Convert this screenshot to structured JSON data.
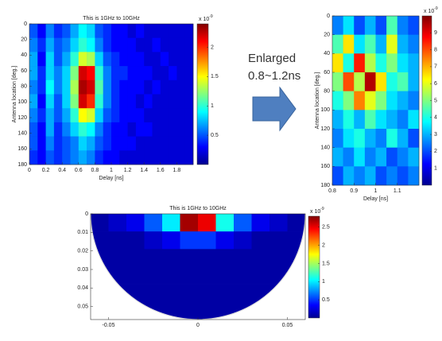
{
  "chart_data": [
    {
      "type": "heatmap",
      "title": "This is 1GHz to 10GHz",
      "xlabel": "Delay [ns]",
      "ylabel": "Antenna location [deg.]",
      "xlim": [
        0,
        2
      ],
      "ylim": [
        0,
        180
      ],
      "xticks": [
        0,
        0.2,
        0.4,
        0.6,
        0.8,
        1,
        1.2,
        1.4,
        1.6,
        1.8
      ],
      "yticks": [
        0,
        20,
        40,
        60,
        80,
        100,
        120,
        140,
        160,
        180
      ],
      "zlim": [
        0,
        2.4
      ],
      "zticks": [
        0.5,
        1,
        1.5,
        2
      ],
      "colorbar_scale": {
        "base": "x 10",
        "exponent": "-9"
      },
      "z": [
        [
          0.5,
          0.3,
          0.6,
          0.4,
          0.5,
          0.7,
          0.9,
          0.8,
          0.5,
          0.4,
          0.3,
          0.3,
          0.2,
          0.3,
          0.2,
          0.2,
          0.2,
          0.2,
          0.2,
          0.2
        ],
        [
          0.6,
          0.4,
          0.7,
          0.5,
          0.6,
          0.8,
          1.0,
          0.9,
          0.6,
          0.4,
          0.3,
          0.3,
          0.3,
          0.2,
          0.2,
          0.3,
          0.2,
          0.2,
          0.2,
          0.2
        ],
        [
          0.7,
          0.3,
          0.8,
          0.5,
          0.7,
          1.0,
          1.4,
          1.3,
          0.8,
          0.5,
          0.4,
          0.3,
          0.3,
          0.3,
          0.2,
          0.2,
          0.3,
          0.2,
          0.2,
          0.2
        ],
        [
          0.7,
          0.4,
          0.8,
          0.6,
          0.8,
          1.2,
          2.2,
          2.1,
          1.0,
          0.6,
          0.4,
          0.4,
          0.3,
          0.3,
          0.3,
          0.2,
          0.2,
          0.3,
          0.2,
          0.2
        ],
        [
          0.6,
          0.4,
          0.9,
          0.6,
          0.8,
          1.3,
          2.3,
          2.2,
          1.1,
          0.6,
          0.4,
          0.3,
          0.3,
          0.3,
          0.2,
          0.3,
          0.2,
          0.2,
          0.2,
          0.2
        ],
        [
          0.7,
          0.3,
          0.8,
          0.5,
          0.8,
          1.2,
          2.2,
          2.0,
          1.0,
          0.6,
          0.4,
          0.3,
          0.3,
          0.2,
          0.3,
          0.2,
          0.2,
          0.2,
          0.2,
          0.2
        ],
        [
          0.6,
          0.4,
          0.7,
          0.5,
          0.7,
          1.0,
          1.5,
          1.4,
          0.8,
          0.5,
          0.4,
          0.3,
          0.3,
          0.3,
          0.2,
          0.2,
          0.2,
          0.2,
          0.2,
          0.2
        ],
        [
          0.5,
          0.3,
          0.7,
          0.4,
          0.6,
          0.8,
          1.0,
          0.9,
          0.6,
          0.4,
          0.3,
          0.3,
          0.2,
          0.3,
          0.3,
          0.2,
          0.2,
          0.2,
          0.2,
          0.2
        ],
        [
          0.5,
          0.3,
          0.6,
          0.4,
          0.5,
          0.6,
          0.8,
          0.7,
          0.5,
          0.4,
          0.3,
          0.3,
          0.3,
          0.2,
          0.2,
          0.2,
          0.2,
          0.2,
          0.2,
          0.2
        ],
        [
          0.4,
          0.3,
          0.5,
          0.4,
          0.5,
          0.6,
          0.7,
          0.6,
          0.4,
          0.3,
          0.3,
          0.2,
          0.2,
          0.2,
          0.2,
          0.2,
          0.2,
          0.2,
          0.2,
          0.2
        ]
      ]
    },
    {
      "type": "heatmap",
      "xlabel": "Delay [ns]",
      "ylabel": "Antenna location [deg.]",
      "xlim": [
        0.8,
        1.2
      ],
      "ylim": [
        0,
        180
      ],
      "xticks": [
        0.8,
        0.9,
        1,
        1.1
      ],
      "yticks": [
        0,
        20,
        40,
        60,
        80,
        100,
        120,
        140,
        160,
        180
      ],
      "zlim": [
        0,
        10
      ],
      "zticks": [
        1,
        2,
        3,
        4,
        5,
        6,
        7,
        8,
        9
      ],
      "colorbar_scale": {
        "base": "x 10",
        "exponent": "-9"
      },
      "z": [
        [
          2.5,
          3.5,
          2.0,
          3.0,
          2.0,
          4.5,
          2.5,
          2.0
        ],
        [
          4.5,
          6.5,
          3.5,
          4.5,
          3.0,
          6.0,
          3.0,
          2.5
        ],
        [
          6.5,
          4.0,
          8.5,
          5.5,
          4.0,
          5.0,
          3.5,
          3.0
        ],
        [
          5.0,
          8.0,
          5.5,
          9.5,
          6.5,
          4.0,
          4.5,
          3.0
        ],
        [
          4.0,
          5.0,
          7.5,
          6.0,
          5.0,
          3.5,
          3.0,
          2.5
        ],
        [
          3.0,
          4.0,
          3.0,
          4.5,
          3.5,
          3.0,
          2.5,
          3.5
        ],
        [
          2.5,
          3.5,
          4.0,
          3.0,
          2.5,
          4.0,
          3.0,
          2.0
        ],
        [
          3.0,
          2.5,
          3.5,
          2.5,
          3.0,
          2.0,
          2.5,
          3.0
        ],
        [
          2.0,
          3.0,
          2.5,
          3.0,
          2.0,
          2.5,
          2.0,
          2.5
        ]
      ]
    },
    {
      "type": "heatmap",
      "title": "This is 1GHz to 10GHz",
      "xlim": [
        -0.06,
        0.06
      ],
      "ylim": [
        0,
        0.057
      ],
      "xticks": [
        -0.05,
        0,
        0.05
      ],
      "yticks": [
        0,
        0.01,
        0.02,
        0.03,
        0.04,
        0.05
      ],
      "zlim": [
        0,
        2.8
      ],
      "zticks": [
        0.5,
        1,
        1.5,
        2,
        2.5
      ],
      "colorbar_scale": {
        "base": "x 10",
        "exponent": "-9"
      },
      "z": [
        [
          0.1,
          0.2,
          0.3,
          0.6,
          1.0,
          2.7,
          2.5,
          1.1,
          0.6,
          0.3,
          0.2,
          0.1
        ],
        [
          0.1,
          0.1,
          0.1,
          0.2,
          0.3,
          0.5,
          0.5,
          0.3,
          0.2,
          0.1,
          0.1,
          0.1
        ],
        [
          0.1,
          0.1,
          0.1,
          0.1,
          0.1,
          0.1,
          0.1,
          0.1,
          0.1,
          0.1,
          0.1,
          0.1
        ],
        [
          0.1,
          0.1,
          0.1,
          0.1,
          0.1,
          0.1,
          0.1,
          0.1,
          0.1,
          0.1,
          0.1,
          0.1
        ],
        [
          0.1,
          0.1,
          0.1,
          0.1,
          0.1,
          0.1,
          0.1,
          0.1,
          0.1,
          0.1,
          0.1,
          0.1
        ],
        [
          0.1,
          0.1,
          0.1,
          0.1,
          0.1,
          0.1,
          0.1,
          0.1,
          0.1,
          0.1,
          0.1,
          0.1
        ]
      ]
    }
  ],
  "annotation": {
    "lines": [
      "Enlarged",
      "0.8~1.2ns"
    ]
  }
}
